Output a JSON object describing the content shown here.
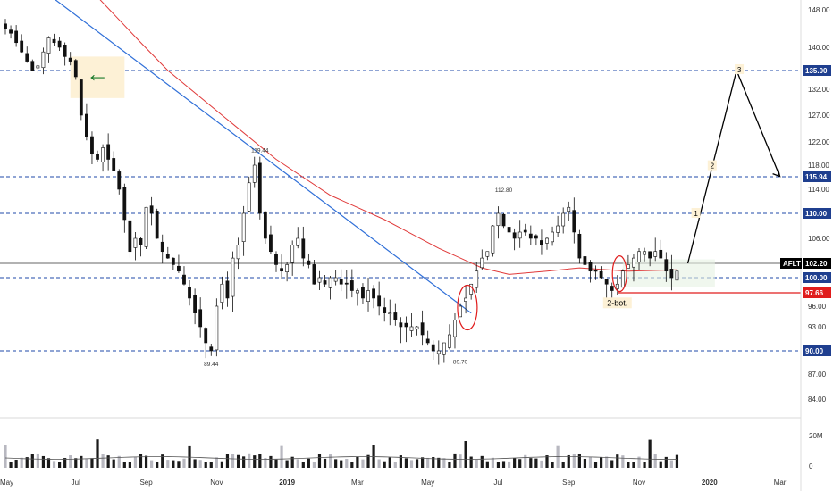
{
  "chart_data": {
    "type": "candlestick",
    "symbol": "AFLT",
    "price_axis": {
      "min": 80,
      "max": 150,
      "ticks": [
        "148.00",
        "140.00",
        "132.00",
        "127.00",
        "122.00",
        "118.00",
        "114.00",
        "106.00",
        "96.00",
        "93.00",
        "87.00",
        "84.00"
      ],
      "tick_values": [
        148,
        140,
        132,
        127,
        122,
        118,
        114,
        106,
        96,
        93,
        87,
        84
      ]
    },
    "time_axis": {
      "labels": [
        "May",
        "Jul",
        "Sep",
        "Nov",
        "2019",
        "Mar",
        "May",
        "Jul",
        "Sep",
        "Nov",
        "2020",
        "Mar"
      ],
      "label_index": [
        0,
        13,
        26,
        39,
        52,
        65,
        78,
        91,
        104,
        117,
        130,
        143
      ],
      "bold_labels": [
        "2019",
        "2020"
      ]
    },
    "levels": [
      {
        "value": 135.0,
        "label": "135.00",
        "style": "dashed-blue",
        "tag_color": "#1f3f8f"
      },
      {
        "value": 115.94,
        "label": "115.94",
        "style": "dashed-blue",
        "tag_color": "#1f3f8f"
      },
      {
        "value": 110.0,
        "label": "110.00",
        "style": "dashed-blue",
        "tag_color": "#1f3f8f"
      },
      {
        "value": 100.0,
        "label": "100.00",
        "style": "dashed-blue",
        "tag_color": "#1f3f8f"
      },
      {
        "value": 90.0,
        "label": "90.00",
        "style": "dashed-blue",
        "tag_color": "#1f3f8f"
      },
      {
        "value": 97.66,
        "label": "97.66",
        "style": "solid-red",
        "tag_color": "#e01c1c"
      },
      {
        "value": 102.2,
        "label": "102.20",
        "style": "solid-black",
        "tag_color": "#000000",
        "ticker": "AFLT"
      }
    ],
    "annotations": {
      "swing_highs_lows": [
        {
          "label": "119.44",
          "index": 47,
          "value": 119.44
        },
        {
          "label": "89.44",
          "index": 38,
          "value": 89.44
        },
        {
          "label": "112.80",
          "index": 92,
          "value": 112.8
        },
        {
          "label": "89.70",
          "index": 84,
          "value": 89.7
        }
      ],
      "projection_points": [
        {
          "label": "1",
          "index": 127,
          "value": 110.0
        },
        {
          "label": "2",
          "index": 130,
          "value": 117.9
        },
        {
          "label": "3",
          "index": 135,
          "value": 135.2
        }
      ],
      "pattern_label": "2-bot.",
      "pattern_label_index": 113,
      "pattern_label_value": 96.3,
      "arrow_symbol": "←"
    },
    "projection_path": [
      {
        "index": 126,
        "value": 102.2
      },
      {
        "index": 135,
        "value": 135.0
      },
      {
        "index": 143,
        "value": 116.0
      }
    ],
    "trendline": [
      {
        "index": 6,
        "value": 153.0
      },
      {
        "index": 86,
        "value": 95.0
      }
    ],
    "moving_average": [
      {
        "index": 16,
        "value": 152.0
      },
      {
        "index": 25,
        "value": 141.0
      },
      {
        "index": 30,
        "value": 135.0
      },
      {
        "index": 40,
        "value": 127.0
      },
      {
        "index": 50,
        "value": 119.0
      },
      {
        "index": 60,
        "value": 113.0
      },
      {
        "index": 70,
        "value": 109.0
      },
      {
        "index": 80,
        "value": 104.5
      },
      {
        "index": 88,
        "value": 101.5
      },
      {
        "index": 93,
        "value": 100.5
      },
      {
        "index": 100,
        "value": 101.0
      },
      {
        "index": 106,
        "value": 101.5
      },
      {
        "index": 115,
        "value": 101.0
      },
      {
        "index": 124,
        "value": 101.2
      }
    ],
    "closes": [
      144,
      143,
      141,
      139,
      137,
      135,
      136,
      139,
      142,
      141,
      140,
      138,
      137,
      134,
      127,
      123,
      120,
      119,
      121,
      119,
      117,
      114,
      109,
      104,
      106,
      105,
      111,
      110,
      106,
      104,
      103,
      102,
      101,
      99,
      97,
      95,
      93,
      91,
      90,
      96,
      99,
      97,
      103,
      105,
      110,
      115,
      118,
      110,
      106,
      104,
      102,
      101,
      102,
      105,
      106,
      103,
      102,
      99,
      100,
      99,
      100,
      100,
      99,
      99,
      98,
      98,
      97,
      98,
      97,
      96,
      95,
      95,
      94,
      93,
      93,
      93,
      93,
      92,
      91,
      90,
      90,
      91,
      92,
      94,
      96,
      97,
      99,
      101,
      103,
      104,
      108,
      110,
      108,
      107,
      106,
      107,
      107,
      106,
      106,
      105,
      106,
      107,
      108,
      110,
      111,
      107,
      103,
      102,
      101,
      101,
      100,
      99,
      98,
      99,
      101,
      102,
      103,
      104,
      104,
      103,
      104,
      103,
      101,
      100,
      101
    ],
    "volume_axis": {
      "labels": [
        "20M",
        "0"
      ],
      "values": [
        20,
        0
      ]
    }
  }
}
